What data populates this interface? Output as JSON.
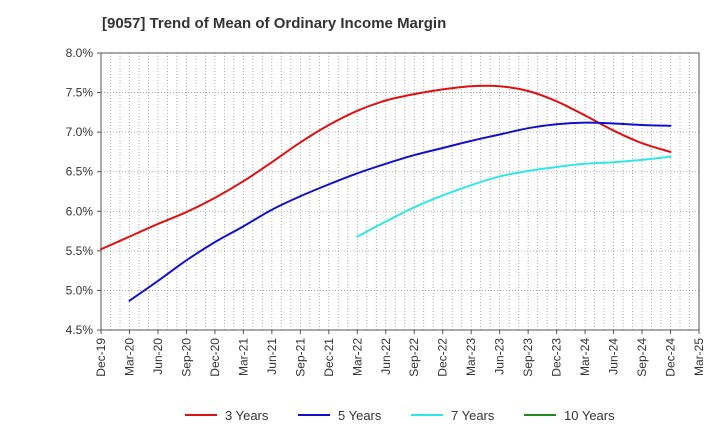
{
  "chart_data": {
    "type": "line",
    "title": "[9057]  Trend of Mean of Ordinary Income Margin",
    "xlabel": "",
    "ylabel": "",
    "x": [
      "Dec-19",
      "Mar-20",
      "Jun-20",
      "Sep-20",
      "Dec-20",
      "Mar-21",
      "Jun-21",
      "Sep-21",
      "Dec-21",
      "Mar-22",
      "Jun-22",
      "Sep-22",
      "Dec-22",
      "Mar-23",
      "Jun-23",
      "Sep-23",
      "Dec-23",
      "Mar-24",
      "Jun-24",
      "Sep-24",
      "Dec-24",
      "Mar-25"
    ],
    "ylim": [
      4.5,
      8.0
    ],
    "yticks": [
      "4.5%",
      "5.0%",
      "5.5%",
      "6.0%",
      "6.5%",
      "7.0%",
      "7.5%",
      "8.0%"
    ],
    "grid": true,
    "legend_position": "bottom",
    "series": [
      {
        "name": "3 Years",
        "color": "#dd1111",
        "values": [
          5.52,
          5.68,
          5.84,
          5.99,
          6.17,
          6.38,
          6.62,
          6.87,
          7.09,
          7.27,
          7.4,
          7.48,
          7.54,
          7.58,
          7.58,
          7.52,
          7.39,
          7.21,
          7.02,
          6.86,
          6.75,
          null
        ]
      },
      {
        "name": "5 Years",
        "color": "#1111cc",
        "values": [
          null,
          4.87,
          5.12,
          5.38,
          5.61,
          5.81,
          6.02,
          6.19,
          6.34,
          6.48,
          6.6,
          6.71,
          6.8,
          6.89,
          6.97,
          7.05,
          7.1,
          7.12,
          7.11,
          7.09,
          7.08,
          null
        ]
      },
      {
        "name": "7 Years",
        "color": "#33e6e6",
        "values": [
          null,
          null,
          null,
          null,
          null,
          null,
          null,
          null,
          null,
          5.68,
          5.87,
          6.05,
          6.2,
          6.33,
          6.44,
          6.51,
          6.56,
          6.6,
          6.62,
          6.65,
          6.69,
          null
        ]
      },
      {
        "name": "10 Years",
        "color": "#228b22",
        "values": [
          null,
          null,
          null,
          null,
          null,
          null,
          null,
          null,
          null,
          null,
          null,
          null,
          null,
          null,
          null,
          null,
          null,
          null,
          null,
          null,
          null,
          null
        ]
      }
    ]
  }
}
